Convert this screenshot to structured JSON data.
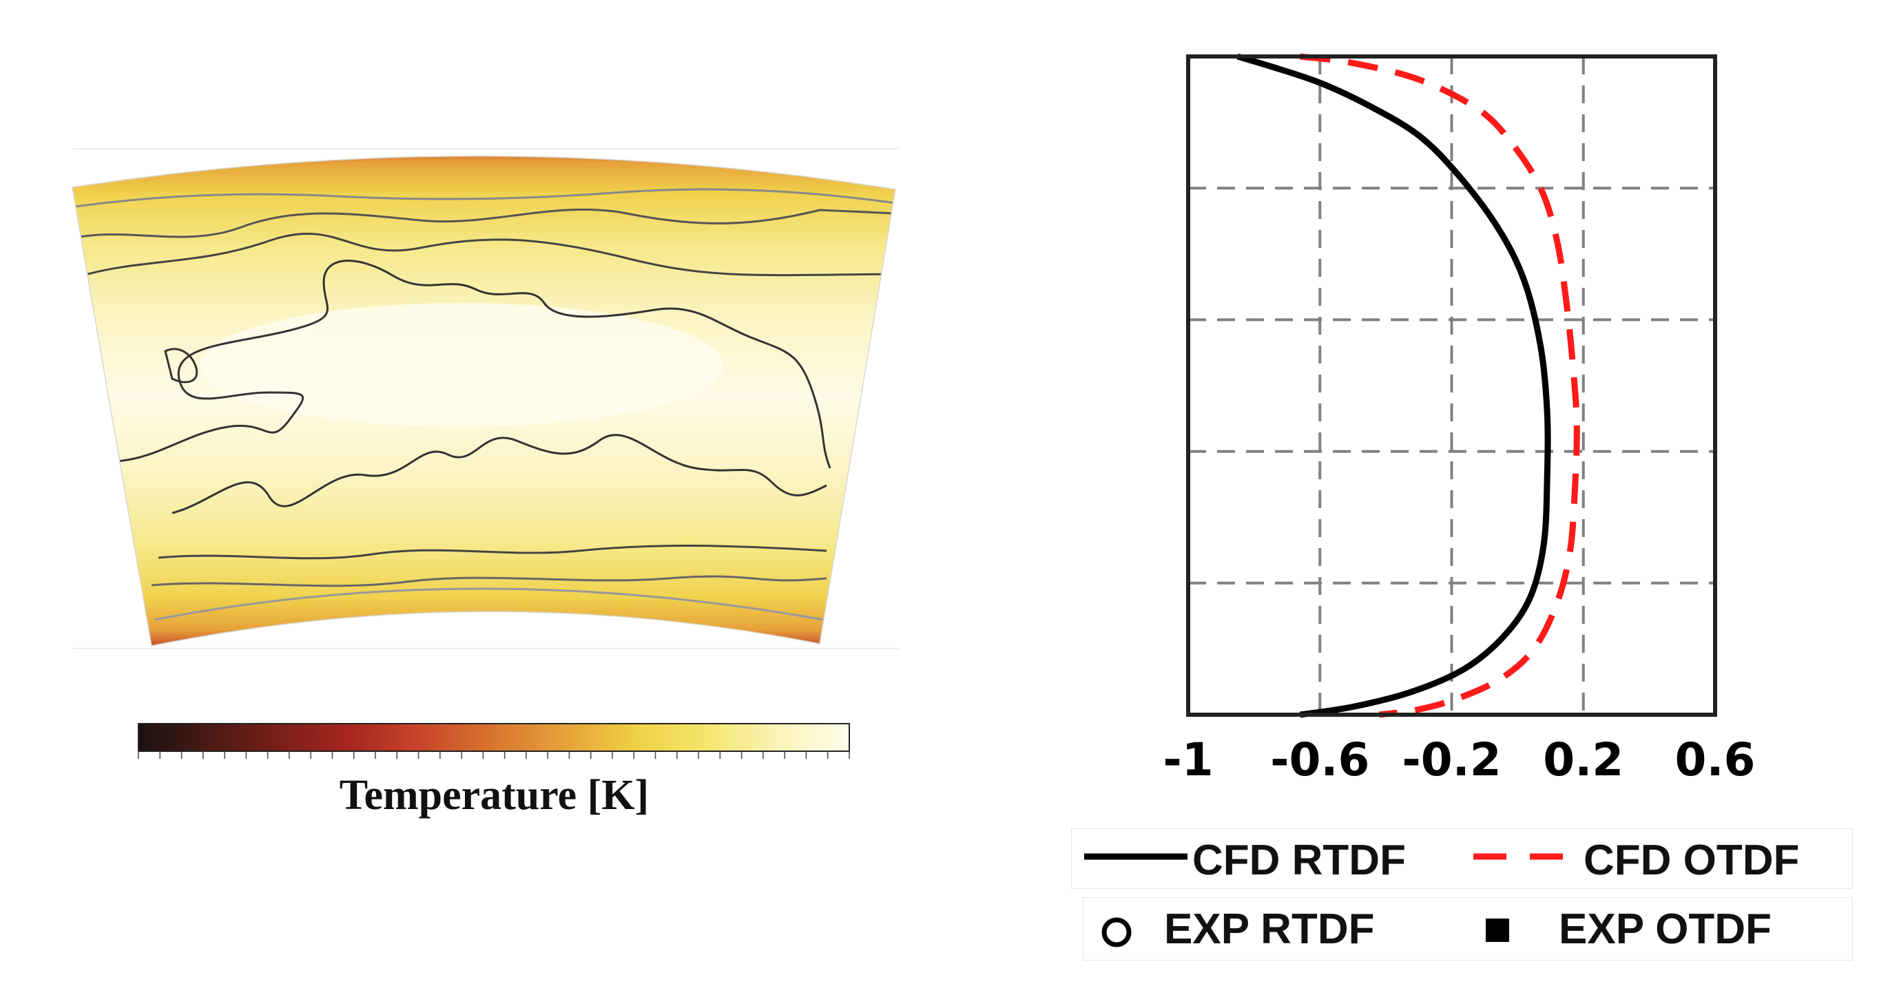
{
  "colorbar": {
    "label": "Temperature [K]",
    "colors": [
      "#1a1212",
      "#4a1a14",
      "#7a1f18",
      "#a8261f",
      "#c8472a",
      "#d9762f",
      "#e6a23a",
      "#efd045",
      "#f5e66e",
      "#faf3b8",
      "#fffcec"
    ]
  },
  "chart_data": {
    "type": "line",
    "title": "",
    "xlabel": "",
    "ylabel": "",
    "xlim": [
      -1,
      0.6
    ],
    "ylim": [
      0,
      1
    ],
    "xticks": [
      -1,
      -0.6,
      -0.2,
      0.2,
      0.6
    ],
    "xtick_labels": [
      "-1",
      "-0.6",
      "-0.2",
      "0.2",
      "0.6"
    ],
    "grid": true,
    "series": [
      {
        "name": "CFD RTDF",
        "color": "#000000",
        "style": "solid",
        "points": [
          [
            -0.85,
            1.0
          ],
          [
            -0.75,
            0.985
          ],
          [
            -0.6,
            0.96
          ],
          [
            -0.45,
            0.925
          ],
          [
            -0.3,
            0.88
          ],
          [
            -0.18,
            0.82
          ],
          [
            -0.06,
            0.74
          ],
          [
            0.02,
            0.66
          ],
          [
            0.07,
            0.56
          ],
          [
            0.09,
            0.46
          ],
          [
            0.09,
            0.36
          ],
          [
            0.08,
            0.26
          ],
          [
            0.04,
            0.18
          ],
          [
            -0.04,
            0.12
          ],
          [
            -0.16,
            0.07
          ],
          [
            -0.32,
            0.035
          ],
          [
            -0.5,
            0.012
          ],
          [
            -0.66,
            0.0
          ]
        ]
      },
      {
        "name": "CFD OTDF",
        "color": "#ff1a1a",
        "style": "dashed",
        "points": [
          [
            -0.66,
            1.0
          ],
          [
            -0.5,
            0.99
          ],
          [
            -0.3,
            0.965
          ],
          [
            -0.12,
            0.92
          ],
          [
            -0.02,
            0.87
          ],
          [
            0.07,
            0.8
          ],
          [
            0.12,
            0.72
          ],
          [
            0.15,
            0.62
          ],
          [
            0.17,
            0.52
          ],
          [
            0.18,
            0.44
          ],
          [
            0.175,
            0.35
          ],
          [
            0.16,
            0.25
          ],
          [
            0.12,
            0.17
          ],
          [
            0.05,
            0.1
          ],
          [
            -0.05,
            0.055
          ],
          [
            -0.18,
            0.025
          ],
          [
            -0.3,
            0.008
          ],
          [
            -0.42,
            0.0
          ]
        ]
      }
    ]
  },
  "legend": {
    "cfd_rtdf": "CFD RTDF",
    "cfd_otdf": "CFD OTDF",
    "exp_rtdf": "EXP RTDF",
    "exp_otdf": "EXP OTDF"
  }
}
